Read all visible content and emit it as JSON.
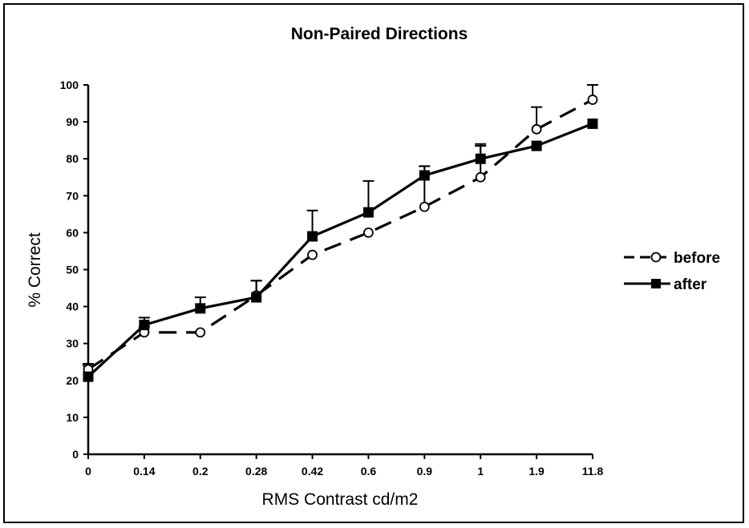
{
  "chart_data": {
    "type": "line",
    "title": "Non-Paired Directions",
    "xlabel": "RMS Contrast cd/m2",
    "ylabel": "% Correct",
    "categories": [
      "0",
      "0.14",
      "0.2",
      "0.28",
      "0.42",
      "0.6",
      "0.9",
      "1",
      "1.9",
      "11.8"
    ],
    "ylim": [
      0,
      100
    ],
    "yticks": [
      0,
      10,
      20,
      30,
      40,
      50,
      60,
      70,
      80,
      90,
      100
    ],
    "grid": false,
    "legend_position": "right",
    "series": [
      {
        "name": "before",
        "line_style": "dashed",
        "marker": "open-circle",
        "color": "#000000",
        "values": [
          23,
          33,
          33,
          43,
          54,
          60,
          67,
          75,
          88,
          96
        ],
        "error_upper": [
          1.5,
          1.5,
          0,
          4,
          0,
          0,
          11,
          9,
          6,
          4
        ]
      },
      {
        "name": "after",
        "line_style": "solid",
        "marker": "filled-square",
        "color": "#000000",
        "values": [
          21,
          35,
          39.5,
          42.5,
          59,
          65.5,
          75.5,
          80,
          83.5,
          89.5
        ],
        "error_upper": [
          3,
          2,
          3,
          4.5,
          7,
          8.5,
          2.5,
          3.5,
          0,
          0
        ]
      }
    ]
  }
}
